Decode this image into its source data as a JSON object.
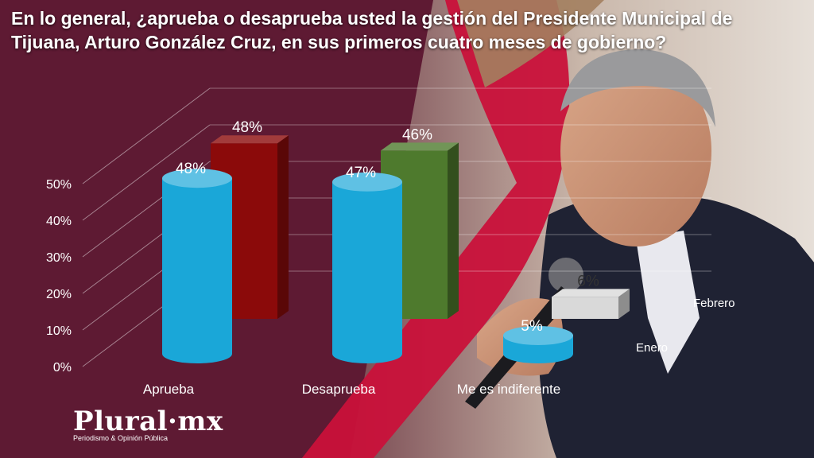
{
  "title": "En lo general, ¿aprueba o desaprueba usted la gestión del Presidente Municipal de Tijuana, Arturo González Cruz, en sus primeros cuatro meses de gobierno?",
  "logo": {
    "name": "Plural·mx",
    "tagline": "Periodismo & Opinión Pública"
  },
  "colors": {
    "background": "#5e1a33",
    "accent_red": "#d9143b",
    "enero": "#1aa7d8",
    "febrero_aprueba": "#8b0a0a",
    "febrero_desaprueba": "#4e7a2d",
    "febrero_indiferente": "#d9d9d9"
  },
  "chart_data": {
    "type": "bar",
    "title": "En lo general, ¿aprueba o desaprueba usted la gestión del Presidente Municipal de Tijuana, Arturo González Cruz, en sus primeros cuatro meses de gobierno?",
    "categories": [
      "Aprueba",
      "Desaprueba",
      "Me es indiferente"
    ],
    "series": [
      {
        "name": "Enero",
        "values": [
          48,
          47,
          5
        ],
        "value_labels": [
          "48%",
          "47%",
          "5%"
        ]
      },
      {
        "name": "Febrero",
        "values": [
          48,
          46,
          6
        ],
        "value_labels": [
          "48%",
          "46%",
          "6%"
        ]
      }
    ],
    "y_tick_labels": [
      "0%",
      "10%",
      "20%",
      "30%",
      "40%",
      "50%"
    ],
    "ylim": [
      0,
      50
    ],
    "legend": "depth-axis labels (3D)",
    "grid": true
  }
}
